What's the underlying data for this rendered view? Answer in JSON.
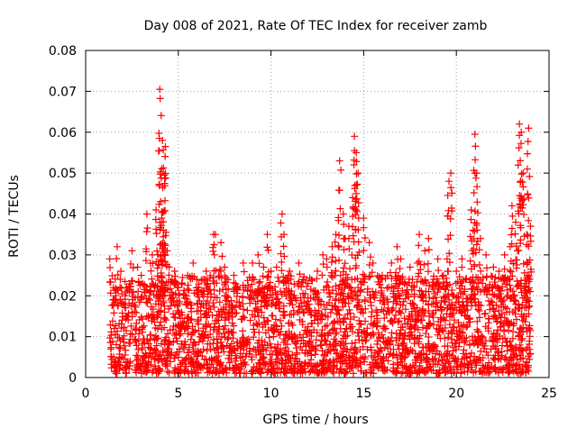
{
  "chart_data": {
    "type": "scatter",
    "title": "Day 008 of 2021, Rate Of TEC Index for receiver zamb",
    "xlabel": "GPS time / hours",
    "ylabel": "ROTI / TECUs",
    "xlim": [
      0,
      25
    ],
    "ylim": [
      0,
      0.08
    ],
    "x_ticks": [
      "0",
      "5",
      "10",
      "15",
      "20",
      "25"
    ],
    "y_ticks": [
      "0",
      "0.01",
      "0.02",
      "0.03",
      "0.04",
      "0.05",
      "0.06",
      "0.07",
      "0.08"
    ],
    "grid": true,
    "legend": "none",
    "marker": "plus",
    "series": [
      {
        "color": "#ff0000",
        "x": [
          1.3,
          1.5,
          1.7,
          1.9,
          2.0,
          2.2,
          2.5,
          2.8,
          3.0,
          3.3,
          3.5,
          3.6,
          3.8,
          3.9,
          4.0,
          4.05,
          4.1,
          4.15,
          4.2,
          4.25,
          4.3,
          4.4,
          4.5,
          4.8,
          5.0,
          5.2,
          5.5,
          5.8,
          6.0,
          6.5,
          6.9,
          7.0,
          7.3,
          7.5,
          8.0,
          8.5,
          9.0,
          9.3,
          9.6,
          9.8,
          10.0,
          10.3,
          10.6,
          10.7,
          11.0,
          11.5,
          12.0,
          12.5,
          12.8,
          13.0,
          13.3,
          13.5,
          13.7,
          13.9,
          14.0,
          14.2,
          14.4,
          14.5,
          14.6,
          14.7,
          15.0,
          15.3,
          15.5,
          16.0,
          16.5,
          16.8,
          17.0,
          17.5,
          17.9,
          18.0,
          18.3,
          18.5,
          19.0,
          19.3,
          19.5,
          19.6,
          19.7,
          20.0,
          20.3,
          20.5,
          20.8,
          20.9,
          21.0,
          21.1,
          21.3,
          21.6,
          22.0,
          22.3,
          22.6,
          22.9,
          23.0,
          23.2,
          23.3,
          23.4,
          23.5,
          23.6,
          23.8,
          23.9,
          24.0
        ],
        "y": [
          0.029,
          0.022,
          0.032,
          0.026,
          0.018,
          0.022,
          0.031,
          0.027,
          0.025,
          0.04,
          0.028,
          0.03,
          0.041,
          0.03,
          0.0705,
          0.043,
          0.039,
          0.058,
          0.036,
          0.0495,
          0.0565,
          0.031,
          0.027,
          0.026,
          0.022,
          0.023,
          0.025,
          0.028,
          0.024,
          0.026,
          0.035,
          0.035,
          0.033,
          0.027,
          0.025,
          0.028,
          0.028,
          0.03,
          0.027,
          0.035,
          0.026,
          0.027,
          0.04,
          0.035,
          0.026,
          0.028,
          0.023,
          0.026,
          0.03,
          0.029,
          0.032,
          0.035,
          0.053,
          0.04,
          0.034,
          0.037,
          0.044,
          0.059,
          0.055,
          0.05,
          0.039,
          0.033,
          0.028,
          0.025,
          0.028,
          0.032,
          0.029,
          0.027,
          0.028,
          0.035,
          0.031,
          0.034,
          0.029,
          0.025,
          0.029,
          0.048,
          0.05,
          0.026,
          0.029,
          0.024,
          0.041,
          0.036,
          0.0595,
          0.05,
          0.034,
          0.03,
          0.027,
          0.026,
          0.03,
          0.032,
          0.042,
          0.038,
          0.031,
          0.062,
          0.06,
          0.05,
          0.035,
          0.061,
          0.037
        ]
      }
    ],
    "dense_band": {
      "x_start": 1.3,
      "x_end": 24.0,
      "y_min": 0.001,
      "y_max": 0.025
    }
  }
}
